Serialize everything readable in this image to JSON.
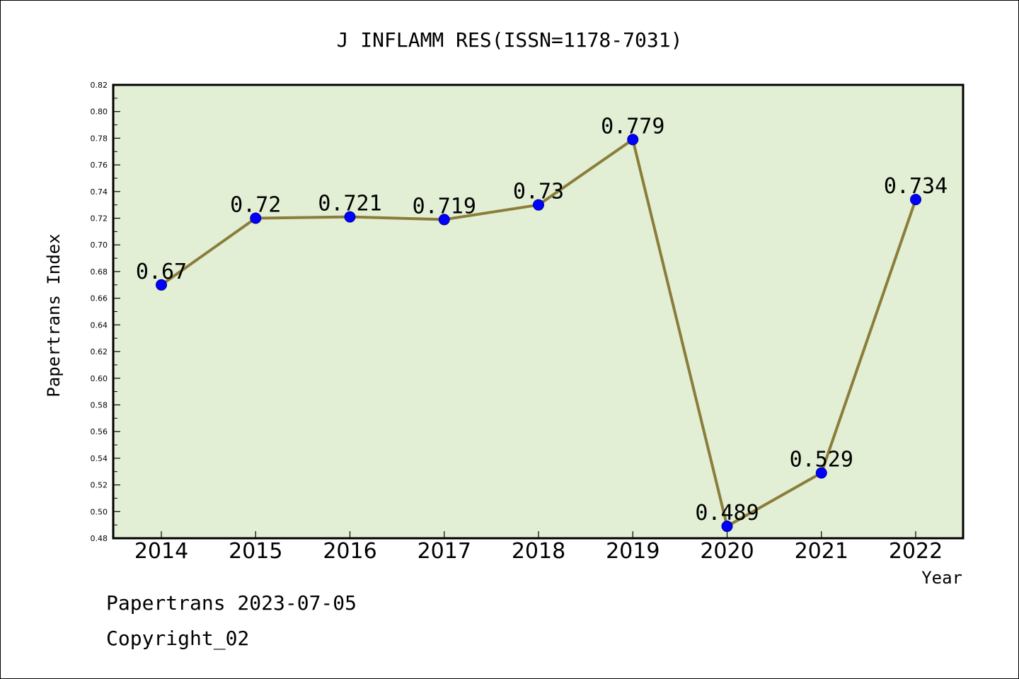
{
  "chart_data": {
    "type": "line",
    "title": "J INFLAMM RES(ISSN=1178-7031)",
    "xlabel": "Year",
    "ylabel": "Papertrans Index",
    "categories": [
      "2014",
      "2015",
      "2016",
      "2017",
      "2018",
      "2019",
      "2020",
      "2021",
      "2022"
    ],
    "values": [
      0.67,
      0.72,
      0.721,
      0.719,
      0.73,
      0.779,
      0.489,
      0.529,
      0.734
    ],
    "value_labels": [
      "0.67",
      "0.72",
      "0.721",
      "0.719",
      "0.73",
      "0.779",
      "0.489",
      "0.529",
      "0.734"
    ],
    "ylim": [
      0.48,
      0.82
    ],
    "yticks": [
      "0.48",
      "0.50",
      "0.52",
      "0.54",
      "0.56",
      "0.58",
      "0.60",
      "0.62",
      "0.64",
      "0.66",
      "0.68",
      "0.70",
      "0.72",
      "0.74",
      "0.76",
      "0.78",
      "0.80",
      "0.82"
    ],
    "grid": false,
    "colors": {
      "plot_background": "#e2efd5",
      "line": "#8b7d3a",
      "marker": "#0000ff"
    }
  },
  "footer": {
    "source_line": "Papertrans 2023-07-05",
    "copyright": "Copyright_02"
  }
}
